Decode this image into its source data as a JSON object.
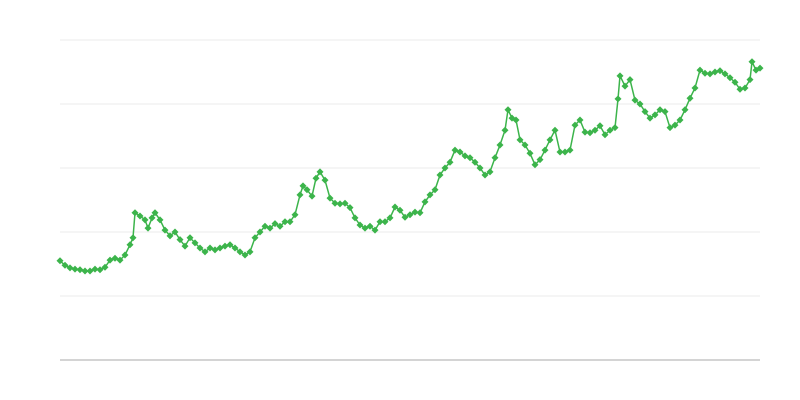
{
  "chart_data": {
    "type": "line",
    "color": "#3cb44b",
    "grid": true,
    "marker": "diamond",
    "xlim": [
      0,
      700
    ],
    "ylim": [
      0,
      5
    ],
    "yticks": [
      0,
      1,
      2,
      3,
      4,
      5
    ],
    "x": [
      0,
      5,
      10,
      15,
      20,
      25,
      30,
      35,
      40,
      45,
      50,
      55,
      60,
      65,
      70,
      73,
      75,
      80,
      85,
      88,
      92,
      95,
      100,
      105,
      110,
      115,
      120,
      125,
      130,
      135,
      140,
      145,
      150,
      155,
      160,
      165,
      170,
      175,
      180,
      185,
      190,
      195,
      200,
      205,
      210,
      215,
      220,
      225,
      230,
      235,
      240,
      243,
      247,
      252,
      256,
      260,
      265,
      270,
      275,
      280,
      285,
      290,
      295,
      300,
      305,
      310,
      315,
      320,
      325,
      330,
      335,
      340,
      345,
      350,
      355,
      360,
      365,
      370,
      375,
      380,
      385,
      390,
      395,
      400,
      405,
      410,
      415,
      420,
      425,
      430,
      435,
      440,
      445,
      448,
      452,
      456,
      460,
      465,
      470,
      475,
      480,
      485,
      490,
      495,
      500,
      505,
      510,
      515,
      520,
      525,
      530,
      535,
      540,
      545,
      550,
      555,
      558,
      560,
      565,
      570,
      575,
      580,
      585,
      590,
      595,
      600,
      605,
      610,
      615,
      620,
      625,
      630,
      635,
      640,
      645,
      650,
      655,
      660,
      665,
      670,
      675,
      680,
      685,
      690,
      692,
      696,
      700
    ],
    "values": [
      1.55,
      1.48,
      1.44,
      1.42,
      1.41,
      1.39,
      1.39,
      1.42,
      1.41,
      1.45,
      1.56,
      1.59,
      1.56,
      1.64,
      1.8,
      1.91,
      2.3,
      2.25,
      2.19,
      2.06,
      2.22,
      2.3,
      2.19,
      2.03,
      1.94,
      2.0,
      1.88,
      1.78,
      1.91,
      1.83,
      1.75,
      1.69,
      1.75,
      1.72,
      1.75,
      1.78,
      1.8,
      1.75,
      1.69,
      1.64,
      1.69,
      1.91,
      2.0,
      2.09,
      2.06,
      2.13,
      2.09,
      2.16,
      2.16,
      2.27,
      2.58,
      2.72,
      2.66,
      2.56,
      2.84,
      2.94,
      2.81,
      2.53,
      2.45,
      2.44,
      2.45,
      2.38,
      2.22,
      2.11,
      2.06,
      2.09,
      2.03,
      2.16,
      2.16,
      2.22,
      2.39,
      2.34,
      2.23,
      2.27,
      2.31,
      2.3,
      2.47,
      2.58,
      2.66,
      2.89,
      3.0,
      3.09,
      3.28,
      3.25,
      3.19,
      3.16,
      3.09,
      3.0,
      2.89,
      2.94,
      3.16,
      3.36,
      3.59,
      3.91,
      3.78,
      3.75,
      3.44,
      3.36,
      3.23,
      3.05,
      3.13,
      3.28,
      3.44,
      3.59,
      3.25,
      3.25,
      3.28,
      3.67,
      3.75,
      3.56,
      3.55,
      3.59,
      3.66,
      3.52,
      3.59,
      3.63,
      4.08,
      4.44,
      4.28,
      4.38,
      4.06,
      4.0,
      3.88,
      3.78,
      3.83,
      3.91,
      3.88,
      3.63,
      3.67,
      3.75,
      3.91,
      4.09,
      4.25,
      4.53,
      4.48,
      4.47,
      4.5,
      4.52,
      4.47,
      4.41,
      4.34,
      4.23,
      4.25,
      4.38,
      4.66,
      4.53,
      4.56
    ]
  }
}
